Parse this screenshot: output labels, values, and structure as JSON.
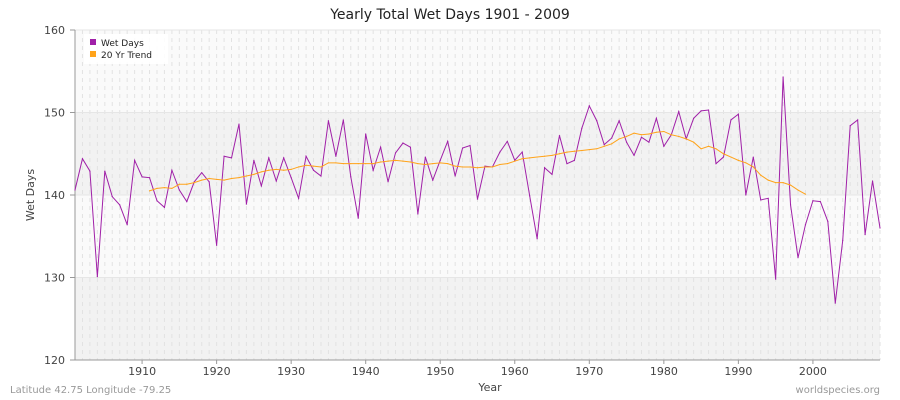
{
  "chart_data": {
    "type": "line",
    "title": "Yearly Total Wet Days 1901 - 2009",
    "xlabel": "Year",
    "ylabel": "Wet Days",
    "xlim": [
      1901,
      2009
    ],
    "ylim": [
      120,
      160
    ],
    "xticks": [
      1910,
      1920,
      1930,
      1940,
      1950,
      1960,
      1970,
      1980,
      1990,
      2000
    ],
    "yticks": [
      120,
      130,
      140,
      150,
      160
    ],
    "grid": true,
    "legend_position": "top-left",
    "series": [
      {
        "name": "Wet Days",
        "color": "#a020a8",
        "x_start": 1901,
        "values": [
          140.6,
          144.4,
          142.9,
          130.1,
          142.9,
          139.8,
          138.8,
          136.4,
          144.2,
          142.2,
          142.1,
          139.3,
          138.5,
          143.0,
          140.6,
          139.2,
          141.6,
          142.7,
          141.6,
          133.9,
          144.7,
          144.5,
          148.6,
          138.9,
          144.2,
          141.1,
          144.5,
          141.7,
          144.5,
          142.1,
          139.6,
          144.7,
          143.0,
          142.3,
          149.0,
          144.7,
          149.1,
          142.2,
          137.2,
          147.4,
          143.0,
          145.8,
          141.6,
          145.1,
          146.3,
          145.8,
          137.7,
          144.6,
          141.8,
          144.2,
          146.5,
          142.3,
          145.7,
          146.0,
          139.5,
          143.5,
          143.4,
          145.2,
          146.5,
          144.2,
          145.2,
          139.9,
          134.7,
          143.3,
          142.5,
          147.2,
          143.8,
          144.2,
          148.1,
          150.8,
          149.0,
          146.1,
          146.9,
          149.0,
          146.4,
          144.8,
          147.0,
          146.4,
          149.3,
          145.9,
          147.3,
          150.1,
          146.8,
          149.3,
          150.2,
          150.3,
          143.8,
          144.6,
          149.1,
          149.8,
          140.0,
          144.6,
          139.4,
          139.6,
          129.8,
          154.3,
          138.8,
          132.4,
          136.4,
          139.3,
          139.2,
          136.8,
          126.9,
          134.5,
          148.4,
          149.1,
          135.2,
          141.7,
          136.0
        ]
      },
      {
        "name": "20 Yr Trend",
        "color": "#ffa31a",
        "x_start": 1911,
        "values": [
          140.5,
          140.8,
          140.9,
          140.8,
          141.3,
          141.3,
          141.5,
          141.8,
          142.0,
          141.9,
          141.8,
          142.0,
          142.1,
          142.3,
          142.5,
          142.8,
          143.0,
          143.1,
          143.0,
          143.1,
          143.4,
          143.6,
          143.5,
          143.4,
          143.9,
          143.9,
          143.8,
          143.8,
          143.8,
          143.8,
          143.8,
          144.0,
          144.1,
          144.2,
          144.1,
          144.0,
          143.8,
          143.7,
          143.8,
          143.9,
          143.8,
          143.5,
          143.4,
          143.4,
          143.3,
          143.4,
          143.4,
          143.7,
          143.8,
          144.1,
          144.4,
          144.5,
          144.6,
          144.7,
          144.8,
          145.0,
          145.2,
          145.3,
          145.4,
          145.5,
          145.6,
          145.9,
          146.2,
          146.8,
          147.1,
          147.5,
          147.3,
          147.4,
          147.6,
          147.7,
          147.3,
          147.1,
          146.8,
          146.4,
          145.6,
          145.9,
          145.6,
          145.0,
          144.6,
          144.2,
          143.9,
          143.4,
          142.4,
          141.8,
          141.5,
          141.5,
          141.2,
          140.6,
          140.1
        ]
      }
    ]
  },
  "footer": {
    "location": "Latitude 42.75 Longitude -79.25",
    "source": "worldspecies.org"
  }
}
